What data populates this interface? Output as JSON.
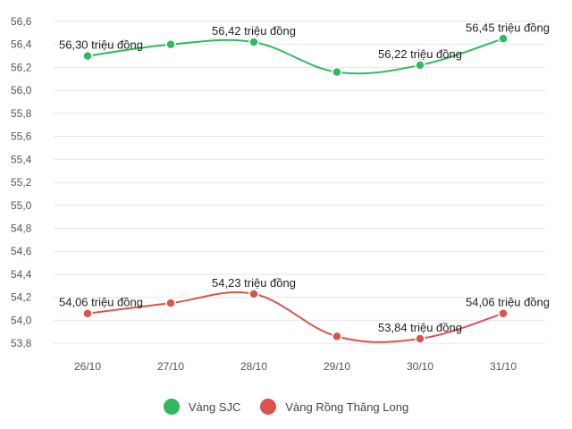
{
  "chart_data": {
    "type": "line",
    "title": "",
    "xlabel": "",
    "ylabel": "",
    "categories": [
      "26/10",
      "27/10",
      "28/10",
      "29/10",
      "30/10",
      "31/10"
    ],
    "yticks": [
      "56,6",
      "56,4",
      "56,2",
      "56,0",
      "55,8",
      "55,6",
      "55,4",
      "55,2",
      "55,0",
      "54,8",
      "54,6",
      "54,4",
      "54,2",
      "54,0",
      "53,8"
    ],
    "ylim": [
      53.7,
      56.6
    ],
    "grid": true,
    "legend_position": "bottom",
    "series": [
      {
        "name": "Vàng SJC",
        "color": "#2fba5f",
        "values": [
          56.3,
          56.4,
          56.42,
          56.16,
          56.22,
          56.45
        ],
        "labels": [
          "56,30 triệu đồng",
          "",
          "56,42 triệu đồng",
          "",
          "56,22 triệu đồng",
          "56,45 triệu đồng"
        ]
      },
      {
        "name": "Vàng Rồng Thăng Long",
        "color": "#d9534f",
        "values": [
          54.06,
          54.15,
          54.23,
          53.86,
          53.84,
          54.06
        ],
        "labels": [
          "54,06 triệu đồng",
          "",
          "54,23 triệu đồng",
          "",
          "53,84 triệu đồng",
          "54,06 triệu đồng"
        ]
      }
    ]
  }
}
